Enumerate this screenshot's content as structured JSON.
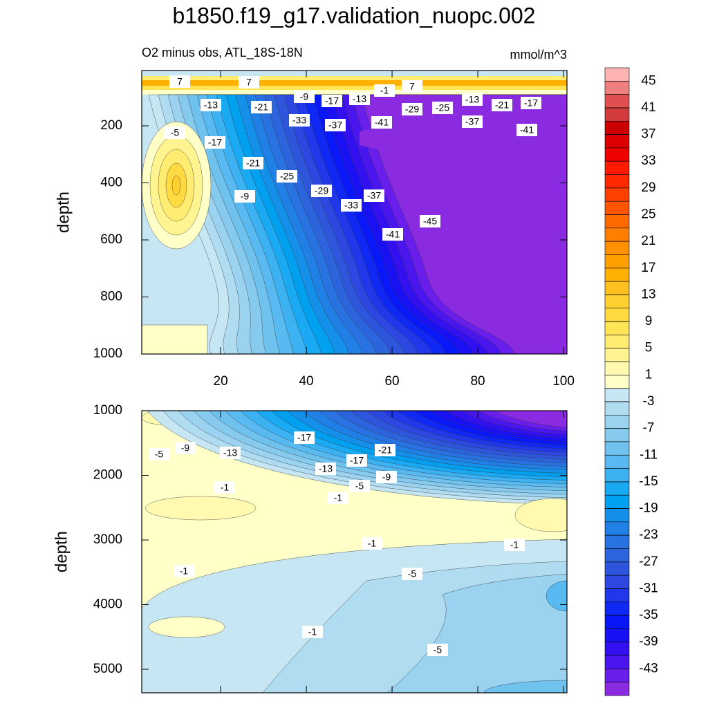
{
  "title": "b1850.f19_g17.validation_nuopc.002",
  "chart_data": [
    {
      "type": "contour",
      "subtitle": "O2 minus obs, ATL_18S-18N",
      "units": "mmol/m^3",
      "ylabel": "depth",
      "xlim": [
        1.6,
        100.8
      ],
      "xticks": [
        20,
        40,
        60,
        80,
        100
      ],
      "ylim": [
        1000,
        6
      ],
      "yticks": [
        200,
        400,
        600,
        800,
        1000
      ],
      "contour_labels": [
        7,
        7,
        7,
        -9,
        -17,
        -13,
        -1,
        -13,
        -21,
        -17,
        -13,
        -21,
        -29,
        -25,
        -5,
        -33,
        -37,
        -41,
        -37,
        -41,
        -17,
        -21,
        -25,
        -29,
        -9,
        -37,
        -33,
        -41,
        -45
      ]
    },
    {
      "type": "contour",
      "ylabel": "depth",
      "xlim": [
        1.6,
        100.8
      ],
      "ylim": [
        5364,
        1000
      ],
      "yticks": [
        1000,
        2000,
        3000,
        4000,
        5000
      ],
      "contour_labels": [
        -5,
        -9,
        -13,
        -17,
        -21,
        -17,
        -13,
        -9,
        -5,
        -1,
        -1,
        -1,
        -1,
        -1,
        -5,
        -1,
        -5
      ]
    }
  ],
  "colorbar": {
    "labels": [
      45,
      41,
      37,
      33,
      29,
      25,
      21,
      17,
      13,
      9,
      5,
      1,
      -3,
      -7,
      -11,
      -15,
      -19,
      -23,
      -27,
      -31,
      -35,
      -39,
      -43
    ],
    "colors": [
      "#ffb3b3",
      "#f08080",
      "#e05050",
      "#d23c3c",
      "#cc0000",
      "#dd0000",
      "#ee0000",
      "#ff1a00",
      "#ff2a00",
      "#ff4000",
      "#ff5500",
      "#ff6a00",
      "#ff7f00",
      "#ff9000",
      "#ffa000",
      "#ffb000",
      "#ffc020",
      "#ffd030",
      "#ffda40",
      "#ffe455",
      "#ffec70",
      "#fff490",
      "#fffab0",
      "#ffffc8",
      "#c6e6f4",
      "#b0dcf2",
      "#9ad2f0",
      "#86caee",
      "#70c2ee",
      "#58baf0",
      "#3cb2f2",
      "#1aaaf4",
      "#00a0f0",
      "#1590ea",
      "#2080e6",
      "#2872e2",
      "#2c64de",
      "#2e56dc",
      "#2c48e0",
      "#2038ea",
      "#1028f4",
      "#0818f8",
      "#1a10f4",
      "#3210f0",
      "#4a16ee",
      "#6a1eec",
      "#8a2be2"
    ]
  }
}
